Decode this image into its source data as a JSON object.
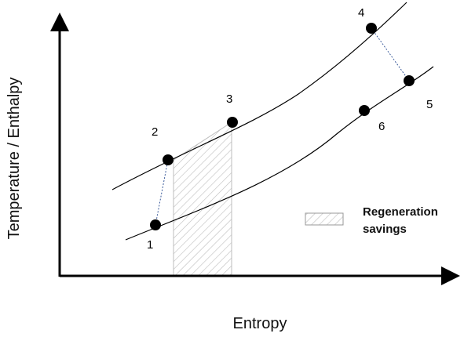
{
  "axes": {
    "x_label": "Entropy",
    "y_label": "Temperature / Enthalpy"
  },
  "points": [
    {
      "id": "1",
      "label": "1"
    },
    {
      "id": "2",
      "label": "2"
    },
    {
      "id": "3",
      "label": "3"
    },
    {
      "id": "4",
      "label": "4"
    },
    {
      "id": "5",
      "label": "5"
    },
    {
      "id": "6",
      "label": "6"
    }
  ],
  "legend": {
    "line1": "Regeneration",
    "line2": "savings"
  },
  "colors": {
    "stroke": "#000000",
    "hatch": "#bdbdbd",
    "dotted": "#3b5b9a"
  }
}
